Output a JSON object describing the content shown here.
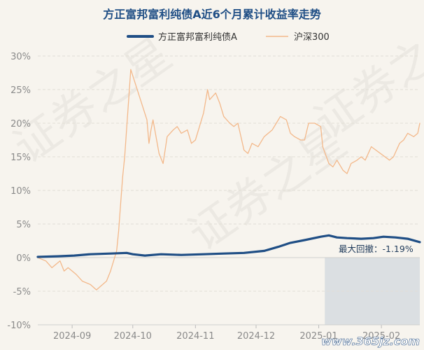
{
  "chart_data": {
    "type": "line",
    "title": "方正富邦富利纯债A近6个月累计收益率走势",
    "xlabel": "",
    "ylabel": "",
    "ylim": [
      -10,
      30
    ],
    "yticks": [
      -10,
      -5,
      0,
      5,
      10,
      15,
      20,
      25,
      30
    ],
    "ytick_labels": [
      "-10%",
      "-5%",
      "0%",
      "5%",
      "10%",
      "15%",
      "20%",
      "25%",
      "30%"
    ],
    "xlim": [
      "2024-08-15",
      "2025-02-20"
    ],
    "xticks": [
      "2024-09-01",
      "2024-10-01",
      "2024-11-01",
      "2024-12-01",
      "2025-01-01",
      "2025-02-01"
    ],
    "xtick_labels": [
      "2024-09",
      "2024-10",
      "2024-11",
      "2024-12",
      "2025-01",
      "2025-02"
    ],
    "grid": true,
    "legend": "top-center",
    "annotation": {
      "text": "最大回撤：-1.19%",
      "start": "2025-01-04",
      "end": "2025-02-20",
      "fill": "#c5ced8"
    },
    "watermark_text": [
      "证券之星",
      "证券之星",
      "证券之星"
    ],
    "source_text": "www.365jz.com",
    "series": [
      {
        "name": "方正富邦富利纯债A",
        "color": "#1f4e85",
        "width": 3.2,
        "x": [
          "2024-08-15",
          "2024-08-25",
          "2024-09-02",
          "2024-09-10",
          "2024-09-20",
          "2024-09-28",
          "2024-10-01",
          "2024-10-07",
          "2024-10-15",
          "2024-10-25",
          "2024-11-05",
          "2024-11-15",
          "2024-11-25",
          "2024-12-05",
          "2024-12-12",
          "2024-12-18",
          "2024-12-25",
          "2025-01-02",
          "2025-01-06",
          "2025-01-10",
          "2025-01-15",
          "2025-01-22",
          "2025-01-28",
          "2025-02-02",
          "2025-02-08",
          "2025-02-14",
          "2025-02-20"
        ],
        "y": [
          0.1,
          0.2,
          0.3,
          0.5,
          0.6,
          0.7,
          0.5,
          0.3,
          0.5,
          0.4,
          0.5,
          0.6,
          0.7,
          1.0,
          1.6,
          2.2,
          2.6,
          3.1,
          3.3,
          3.0,
          2.9,
          2.8,
          2.9,
          3.1,
          3.0,
          2.8,
          2.3
        ]
      },
      {
        "name": "沪深300",
        "color": "#f3b88a",
        "width": 1.3,
        "x": [
          "2024-08-15",
          "2024-08-19",
          "2024-08-22",
          "2024-08-26",
          "2024-08-28",
          "2024-08-30",
          "2024-09-03",
          "2024-09-06",
          "2024-09-10",
          "2024-09-13",
          "2024-09-18",
          "2024-09-20",
          "2024-09-23",
          "2024-09-24",
          "2024-09-25",
          "2024-09-26",
          "2024-09-27",
          "2024-09-30",
          "2024-10-08",
          "2024-10-09",
          "2024-10-10",
          "2024-10-11",
          "2024-10-14",
          "2024-10-16",
          "2024-10-18",
          "2024-10-21",
          "2024-10-23",
          "2024-10-25",
          "2024-10-28",
          "2024-10-30",
          "2024-11-01",
          "2024-11-05",
          "2024-11-07",
          "2024-11-08",
          "2024-11-11",
          "2024-11-13",
          "2024-11-15",
          "2024-11-18",
          "2024-11-20",
          "2024-11-22",
          "2024-11-25",
          "2024-11-27",
          "2024-11-29",
          "2024-12-02",
          "2024-12-05",
          "2024-12-09",
          "2024-12-11",
          "2024-12-13",
          "2024-12-16",
          "2024-12-18",
          "2024-12-20",
          "2024-12-23",
          "2024-12-25",
          "2024-12-27",
          "2024-12-30",
          "2025-01-02",
          "2025-01-03",
          "2025-01-06",
          "2025-01-08",
          "2025-01-10",
          "2025-01-13",
          "2025-01-15",
          "2025-01-17",
          "2025-01-20",
          "2025-01-22",
          "2025-01-24",
          "2025-01-27",
          "2025-02-05",
          "2025-02-07",
          "2025-02-10",
          "2025-02-12",
          "2025-02-14",
          "2025-02-17",
          "2025-02-19",
          "2025-02-20"
        ],
        "y": [
          0.0,
          -0.5,
          -1.5,
          -0.5,
          -2.0,
          -1.5,
          -2.5,
          -3.5,
          -4.0,
          -4.8,
          -3.5,
          -2.0,
          1.0,
          4.0,
          8.0,
          12.0,
          15.0,
          28.0,
          20.5,
          17.0,
          19.0,
          20.5,
          15.5,
          14.0,
          18.0,
          19.0,
          19.5,
          18.5,
          19.0,
          17.0,
          17.5,
          21.5,
          25.0,
          23.5,
          24.5,
          23.0,
          21.0,
          20.0,
          19.5,
          20.0,
          16.0,
          15.5,
          17.0,
          16.5,
          18.0,
          19.0,
          20.0,
          21.0,
          20.5,
          18.5,
          18.0,
          17.5,
          17.5,
          20.0,
          20.0,
          19.5,
          16.5,
          14.0,
          13.5,
          14.5,
          13.0,
          12.5,
          14.0,
          14.5,
          15.0,
          14.5,
          16.5,
          14.5,
          15.0,
          17.0,
          17.5,
          18.5,
          18.0,
          18.5,
          20.0
        ]
      }
    ]
  }
}
